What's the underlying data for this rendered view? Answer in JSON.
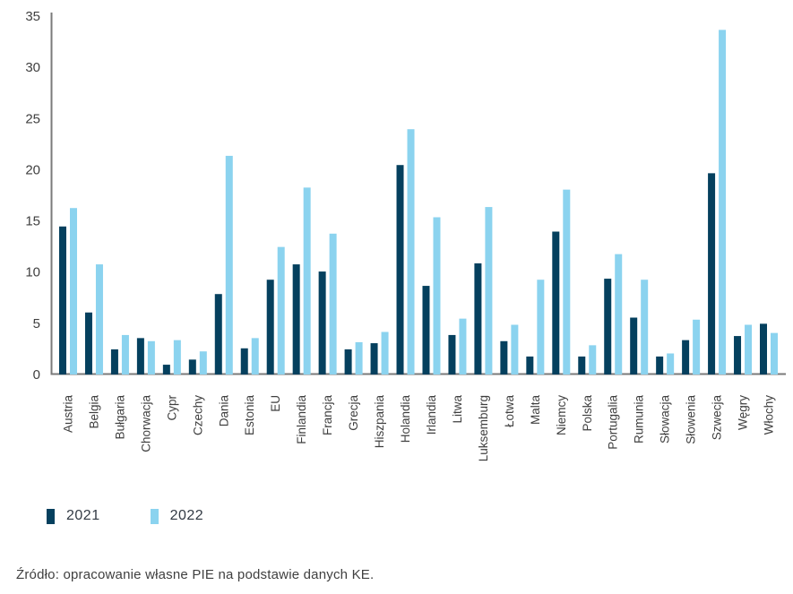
{
  "page": {
    "source_note": "Źródło: opracowanie własne PIE na podstawie danych KE."
  },
  "chart_data": {
    "type": "bar",
    "title": "",
    "xlabel": "",
    "ylabel": "",
    "categories": [
      "Austria",
      "Belgia",
      "Bułgaria",
      "Chorwacja",
      "Cypr",
      "Czechy",
      "Dania",
      "Estonia",
      "EU",
      "Finlandia",
      "Francja",
      "Grecja",
      "Hiszpania",
      "Holandia",
      "Irlandia",
      "Litwa",
      "Luksemburg",
      "Łotwa",
      "Malta",
      "Niemcy",
      "Polska",
      "Portugalia",
      "Rumunia",
      "Słowacja",
      "Słowenia",
      "Szwecja",
      "Węgry",
      "Włochy"
    ],
    "series": [
      {
        "name": "2021",
        "color": "#05405e",
        "values": [
          14.5,
          6.1,
          2.5,
          3.6,
          1.0,
          1.5,
          7.9,
          2.6,
          9.3,
          10.8,
          10.1,
          2.5,
          3.1,
          20.5,
          8.7,
          3.9,
          10.9,
          3.3,
          1.8,
          14.0,
          1.8,
          9.4,
          5.6,
          1.8,
          3.4,
          19.7,
          3.8,
          5.0
        ]
      },
      {
        "name": "2022",
        "color": "#8bd3ef",
        "values": [
          16.3,
          10.8,
          3.9,
          3.3,
          3.4,
          2.3,
          21.4,
          3.6,
          12.5,
          18.3,
          13.8,
          3.2,
          4.2,
          24.0,
          15.4,
          5.5,
          16.4,
          4.9,
          9.3,
          18.1,
          2.9,
          11.8,
          9.3,
          2.1,
          5.4,
          33.7,
          4.9,
          4.1
        ]
      }
    ],
    "ylim": [
      0,
      35
    ],
    "yticks": [
      0,
      5,
      10,
      15,
      20,
      25,
      30,
      35
    ],
    "grid": false,
    "legend_position": "bottom-left",
    "axis_color": "#7a7a7a",
    "text_color": "#3f3f3f"
  }
}
